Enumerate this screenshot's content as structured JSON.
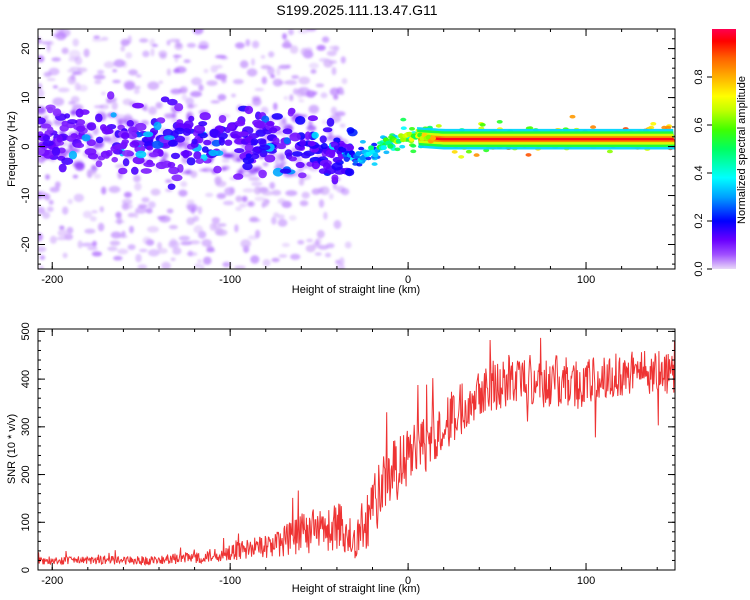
{
  "figure": {
    "title": "S199.2025.111.13.47.G11"
  },
  "chart_data": [
    {
      "type": "heatmap",
      "xlabel": "Height of straight line (km)",
      "ylabel": "Frequency (Hz)",
      "xlim": [
        -208,
        150
      ],
      "ylim": [
        -25,
        24
      ],
      "xticks": [
        -200,
        -100,
        0,
        100
      ],
      "yticks": [
        -20,
        -10,
        0,
        10,
        20
      ],
      "colorbar": {
        "label": "Normalized spectral amplitude",
        "range": [
          0,
          1
        ],
        "ticks": [
          "0.0",
          "0.2",
          "0.4",
          "0.6",
          "0.8"
        ],
        "colormap": [
          "#e8d8f8",
          "#a050ff",
          "#6a00ff",
          "#0000ff",
          "#00a0ff",
          "#00ffff",
          "#00ff60",
          "#40ff00",
          "#c0ff00",
          "#ffff00",
          "#ffb000",
          "#ff6000",
          "#ff0000",
          "#ff0050"
        ]
      },
      "ridge": {
        "description_points": [
          {
            "x": -208,
            "y": 1.5,
            "amp": 0.18
          },
          {
            "x": -150,
            "y": 1.0,
            "amp": 0.2
          },
          {
            "x": -100,
            "y": 0.5,
            "amp": 0.22
          },
          {
            "x": -60,
            "y": 0.5,
            "amp": 0.22
          },
          {
            "x": -35,
            "y": -1.0,
            "amp": 0.25
          },
          {
            "x": -28,
            "y": -2.5,
            "amp": 0.3
          },
          {
            "x": -20,
            "y": -1.0,
            "amp": 0.4
          },
          {
            "x": -10,
            "y": 1.0,
            "amp": 0.55
          },
          {
            "x": 0,
            "y": 2.0,
            "amp": 0.6
          },
          {
            "x": 20,
            "y": 1.5,
            "amp": 0.75
          },
          {
            "x": 60,
            "y": 1.5,
            "amp": 0.9
          },
          {
            "x": 150,
            "y": 1.5,
            "amp": 0.92
          }
        ]
      }
    },
    {
      "type": "line",
      "xlabel": "Height of straight line (km)",
      "ylabel": "SNR (10 * v/v)",
      "xlim": [
        -208,
        150
      ],
      "ylim": [
        0,
        505
      ],
      "xticks": [
        -200,
        -100,
        0,
        100
      ],
      "yticks": [
        0,
        100,
        200,
        300,
        400,
        500
      ],
      "series": [
        {
          "color": "#ee3333",
          "trend_points": [
            {
              "x": -208,
              "y": 20,
              "noise": 8
            },
            {
              "x": -140,
              "y": 20,
              "noise": 10
            },
            {
              "x": -110,
              "y": 30,
              "noise": 15
            },
            {
              "x": -80,
              "y": 50,
              "noise": 25
            },
            {
              "x": -55,
              "y": 80,
              "noise": 45
            },
            {
              "x": -38,
              "y": 90,
              "noise": 55
            },
            {
              "x": -30,
              "y": 60,
              "noise": 40
            },
            {
              "x": -22,
              "y": 120,
              "noise": 70
            },
            {
              "x": -10,
              "y": 200,
              "noise": 70
            },
            {
              "x": 5,
              "y": 250,
              "noise": 60
            },
            {
              "x": 20,
              "y": 300,
              "noise": 60
            },
            {
              "x": 40,
              "y": 380,
              "noise": 55
            },
            {
              "x": 60,
              "y": 400,
              "noise": 55
            },
            {
              "x": 100,
              "y": 390,
              "noise": 55
            },
            {
              "x": 130,
              "y": 420,
              "noise": 45
            },
            {
              "x": 150,
              "y": 410,
              "noise": 45
            }
          ]
        }
      ]
    }
  ]
}
